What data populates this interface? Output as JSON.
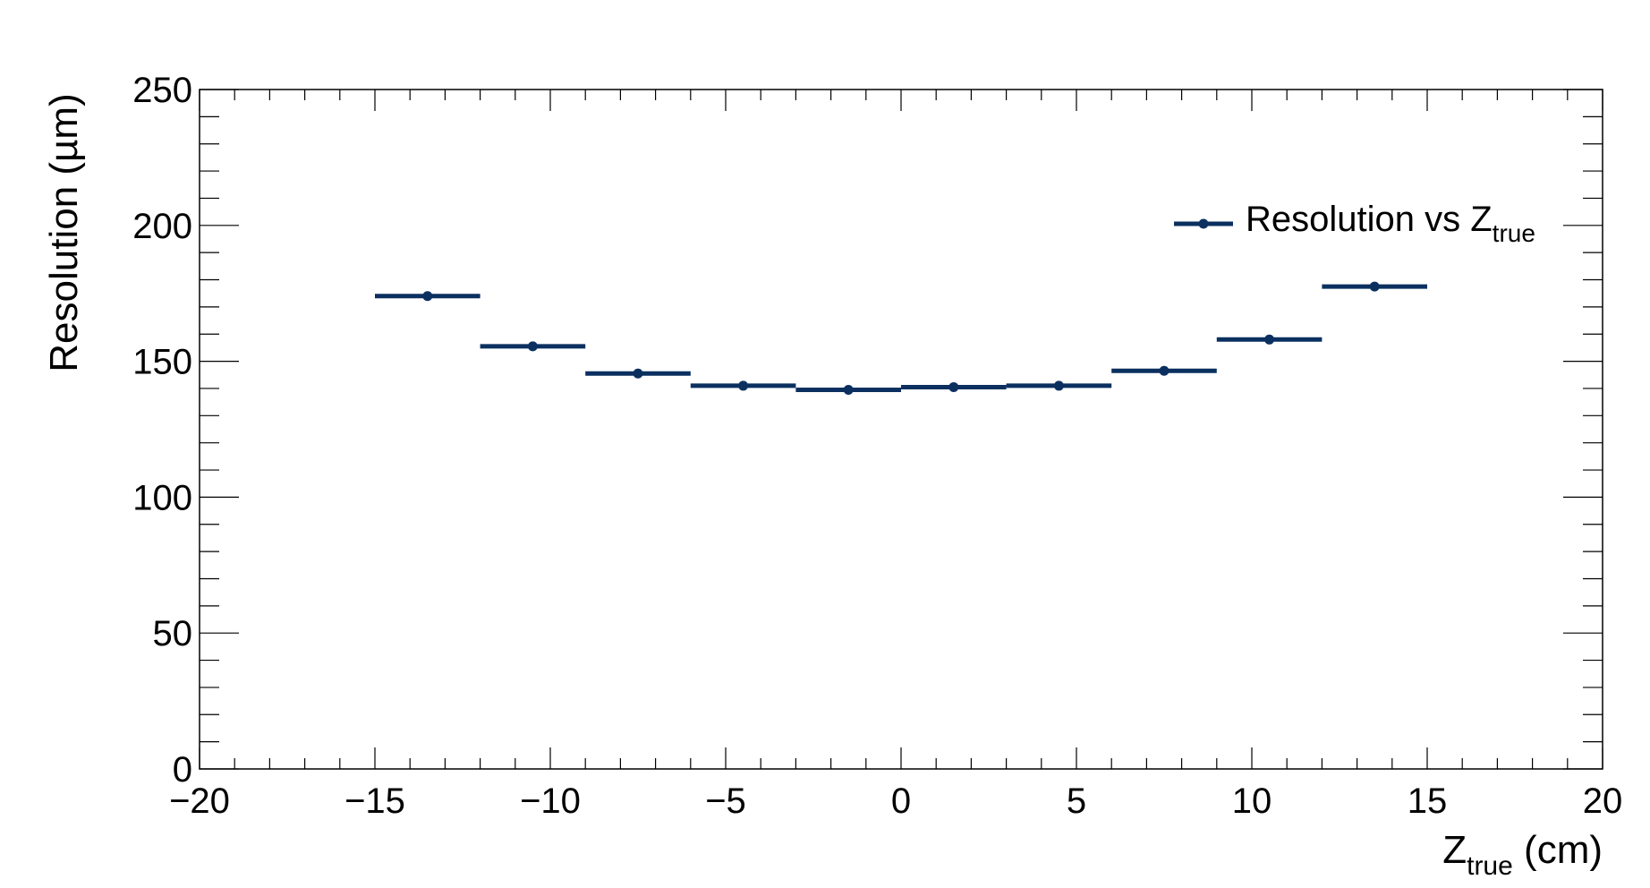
{
  "chart_data": {
    "type": "scatter",
    "xlabel_main": "Z",
    "xlabel_sub": "true",
    "xlabel_unit": " (cm)",
    "ylabel": "Resolution (µm)",
    "xlim": [
      -20,
      20
    ],
    "ylim": [
      0,
      250
    ],
    "xticks": [
      -20,
      -15,
      -10,
      -5,
      0,
      5,
      10,
      15,
      20
    ],
    "xtick_labels": [
      "−20",
      "−15",
      "−10",
      "−5",
      "0",
      "5",
      "10",
      "15",
      "20"
    ],
    "yticks": [
      0,
      50,
      100,
      150,
      200,
      250
    ],
    "ytick_labels": [
      "0",
      "50",
      "100",
      "150",
      "200",
      "250"
    ],
    "grid": false,
    "legend": {
      "position": "top-right",
      "label_main": "Resolution vs Z",
      "label_sub": "true"
    },
    "series": [
      {
        "name": "Resolution vs Z_true",
        "color": "#0b3060",
        "points": [
          {
            "x": -13.5,
            "xerr": 1.5,
            "y": 174
          },
          {
            "x": -10.5,
            "xerr": 1.5,
            "y": 155.5
          },
          {
            "x": -7.5,
            "xerr": 1.5,
            "y": 145.5
          },
          {
            "x": -4.5,
            "xerr": 1.5,
            "y": 141
          },
          {
            "x": -1.5,
            "xerr": 1.5,
            "y": 139.5
          },
          {
            "x": 1.5,
            "xerr": 1.5,
            "y": 140.5
          },
          {
            "x": 4.5,
            "xerr": 1.5,
            "y": 141
          },
          {
            "x": 7.5,
            "xerr": 1.5,
            "y": 146.5
          },
          {
            "x": 10.5,
            "xerr": 1.5,
            "y": 158
          },
          {
            "x": 13.5,
            "xerr": 1.5,
            "y": 177.5
          }
        ]
      }
    ]
  }
}
